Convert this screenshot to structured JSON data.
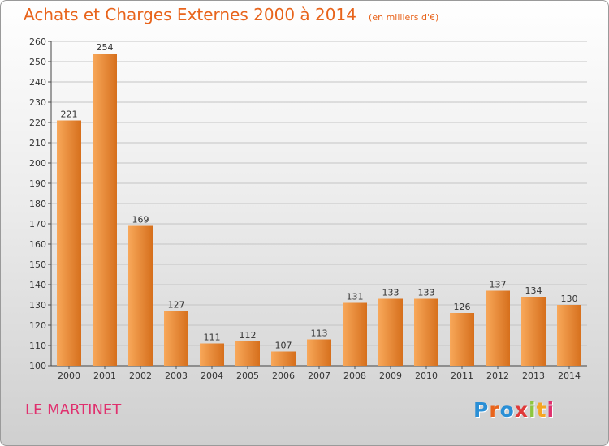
{
  "header": {
    "title": "Achats et Charges Externes 2000 à 2014",
    "subtitle": "(en milliers d'€)"
  },
  "footer": {
    "commune": "LE MARTINET",
    "logo_text": "Proxiti",
    "logo_colors": [
      "#2a8fd6",
      "#e8641c",
      "#2a8fd6",
      "#e03a3a",
      "#8dc63f",
      "#f5a623",
      "#e0306e"
    ]
  },
  "colors": {
    "bar_light": "#f8a85a",
    "bar_dark": "#d66f1c",
    "title": "#e8641c",
    "commune": "#e0306e"
  },
  "chart_data": {
    "type": "bar",
    "categories": [
      "2000",
      "2001",
      "2002",
      "2003",
      "2004",
      "2005",
      "2006",
      "2007",
      "2008",
      "2009",
      "2010",
      "2011",
      "2012",
      "2013",
      "2014"
    ],
    "values": [
      221,
      254,
      169,
      127,
      111,
      112,
      107,
      113,
      131,
      133,
      133,
      126,
      137,
      134,
      130
    ],
    "ylim": [
      100,
      260
    ],
    "yticks": [
      100,
      110,
      120,
      130,
      140,
      150,
      160,
      170,
      180,
      190,
      200,
      210,
      220,
      230,
      240,
      250,
      260
    ],
    "grid": true,
    "data_labels": true
  }
}
